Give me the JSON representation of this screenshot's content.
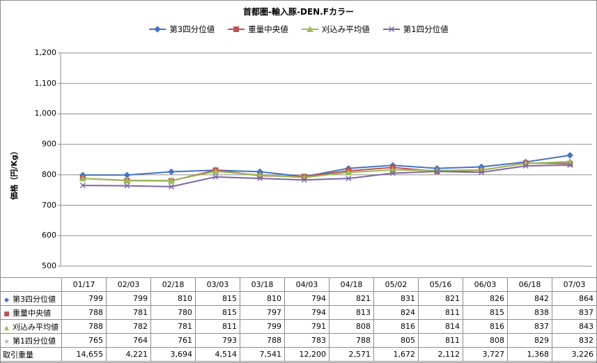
{
  "chart_data": {
    "type": "line",
    "title": "首都圏-輸入豚-DEN.Fカラー",
    "ylabel": "価格（円/Kg）",
    "ylim": [
      500,
      1200
    ],
    "yticks": [
      "500",
      "600",
      "700",
      "800",
      "900",
      "1,000",
      "1,100",
      "1,200"
    ],
    "ytick_values": [
      500,
      600,
      700,
      800,
      900,
      1000,
      1100,
      1200
    ],
    "grid": true,
    "legend_position": "top",
    "categories": [
      "01/17",
      "02/03",
      "02/18",
      "03/03",
      "03/18",
      "04/03",
      "04/18",
      "05/02",
      "05/16",
      "06/03",
      "06/18",
      "07/03"
    ],
    "series": [
      {
        "name": "第3四分位値",
        "color": "#4472c4",
        "marker": "diamond",
        "values": [
          799,
          799,
          810,
          815,
          810,
          794,
          821,
          831,
          821,
          826,
          842,
          864
        ],
        "table_values": [
          "799",
          "799",
          "810",
          "815",
          "810",
          "794",
          "821",
          "831",
          "821",
          "826",
          "842",
          "864"
        ]
      },
      {
        "name": "重量中央値",
        "color": "#c0504d",
        "marker": "square",
        "values": [
          788,
          781,
          780,
          815,
          797,
          794,
          813,
          824,
          811,
          815,
          838,
          837
        ],
        "table_values": [
          "788",
          "781",
          "780",
          "815",
          "797",
          "794",
          "813",
          "824",
          "811",
          "815",
          "838",
          "837"
        ]
      },
      {
        "name": "刈込み平均値",
        "color": "#9bbb59",
        "marker": "triangle",
        "values": [
          788,
          782,
          781,
          811,
          799,
          791,
          808,
          816,
          814,
          816,
          837,
          843
        ],
        "table_values": [
          "788",
          "782",
          "781",
          "811",
          "799",
          "791",
          "808",
          "816",
          "814",
          "816",
          "837",
          "843"
        ]
      },
      {
        "name": "第1四分位値",
        "color": "#8064a2",
        "marker": "x",
        "values": [
          765,
          764,
          761,
          793,
          788,
          783,
          788,
          805,
          811,
          808,
          829,
          832
        ],
        "table_values": [
          "765",
          "764",
          "761",
          "793",
          "788",
          "783",
          "788",
          "805",
          "811",
          "808",
          "829",
          "832"
        ]
      }
    ],
    "volume": {
      "name": "取引重量",
      "values": [
        "14,655",
        "4,221",
        "3,694",
        "4,514",
        "7,541",
        "12,200",
        "2,571",
        "1,672",
        "2,112",
        "3,727",
        "1,368",
        "3,226"
      ]
    }
  }
}
